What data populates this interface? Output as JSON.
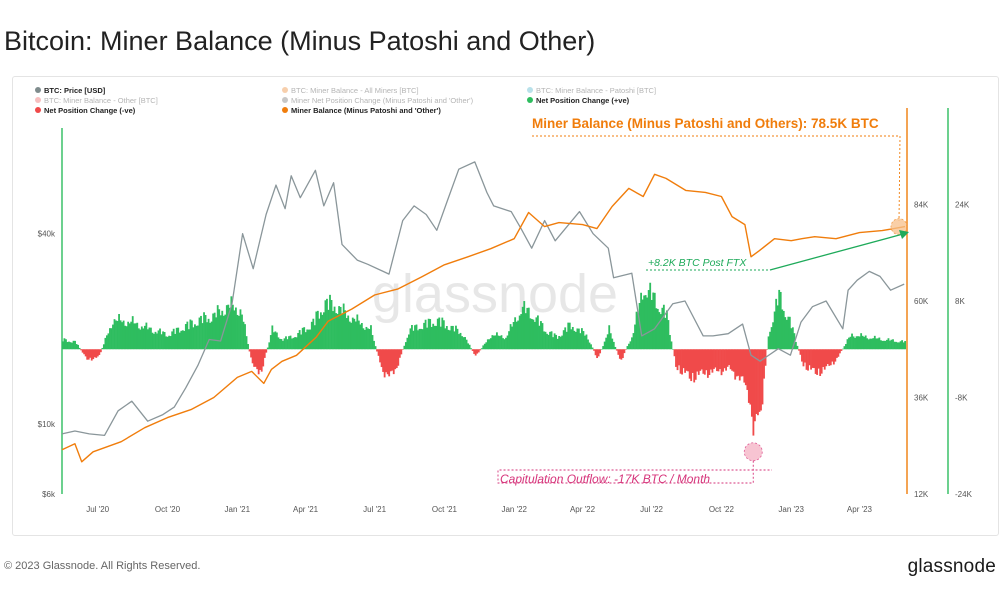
{
  "page": {
    "title": "Bitcoin: Miner Balance (Minus Patoshi and Other)",
    "copyright": "© 2023 Glassnode. All Rights Reserved.",
    "logo": "glassnode",
    "watermark": "glassnode"
  },
  "chart_data": {
    "type": "line",
    "legend": [
      {
        "label": "BTC: Price [USD]",
        "color": "#7f8c8d",
        "active": true
      },
      {
        "label": "BTC: Miner Balance - All Miners [BTC]",
        "color": "#f0a868",
        "active": false
      },
      {
        "label": "BTC: Miner Balance - Patoshi [BTC]",
        "color": "#7ec8d8",
        "active": false
      },
      {
        "label": "BTC: Miner Balance - Other [BTC]",
        "color": "#f08a8a",
        "active": false
      },
      {
        "label": "Miner Net Position Change (Minus Patoshi and 'Other')",
        "color": "#999999",
        "active": false
      },
      {
        "label": "Net Position Change (+ve)",
        "color": "#2ebd5f",
        "active": true
      },
      {
        "label": "Net Position Change (-ve)",
        "color": "#f04a4a",
        "active": true
      },
      {
        "label": "Miner Balance (Minus Patoshi and 'Other')",
        "color": "#f07d0c",
        "active": true
      }
    ],
    "x_ticks": [
      "Jul '20",
      "Oct '20",
      "Jan '21",
      "Apr '21",
      "Jul '21",
      "Oct '21",
      "Jan '22",
      "Apr '22",
      "Jul '22",
      "Oct '22",
      "Jan '23",
      "Apr '23"
    ],
    "x_range": [
      "2020-05-15",
      "2023-05-31"
    ],
    "price_axis": {
      "scale": "log",
      "ticks": [
        "$6k",
        "$10k",
        "$40k"
      ],
      "tick_values": [
        6000,
        10000,
        40000
      ],
      "ylim": [
        6000,
        100000
      ]
    },
    "balance_axis": {
      "ticks": [
        "12K",
        "36K",
        "60K",
        "84K"
      ],
      "tick_values": [
        12000,
        36000,
        60000,
        84000
      ],
      "ylim": [
        12000,
        108000
      ]
    },
    "net_change_axis": {
      "ticks": [
        "-24K",
        "-8K",
        "8K",
        "24K"
      ],
      "tick_values": [
        -24000,
        -8000,
        8000,
        24000
      ],
      "ylim": [
        -24000,
        40000
      ]
    },
    "series": [
      {
        "name": "BTC: Price [USD]",
        "color": "#8a969a",
        "axis": "price",
        "points": [
          [
            "2020-05-15",
            9300
          ],
          [
            "2020-06-01",
            9500
          ],
          [
            "2020-06-20",
            9300
          ],
          [
            "2020-07-10",
            9200
          ],
          [
            "2020-07-28",
            11000
          ],
          [
            "2020-08-15",
            11800
          ],
          [
            "2020-09-05",
            10200
          ],
          [
            "2020-09-25",
            10700
          ],
          [
            "2020-10-10",
            11300
          ],
          [
            "2020-10-25",
            13000
          ],
          [
            "2020-11-10",
            15300
          ],
          [
            "2020-11-25",
            18500
          ],
          [
            "2020-12-10",
            18300
          ],
          [
            "2020-12-25",
            24000
          ],
          [
            "2021-01-08",
            40000
          ],
          [
            "2021-01-22",
            31000
          ],
          [
            "2021-02-08",
            46000
          ],
          [
            "2021-02-21",
            57000
          ],
          [
            "2021-03-05",
            48000
          ],
          [
            "2021-03-13",
            61000
          ],
          [
            "2021-03-25",
            52000
          ],
          [
            "2021-04-14",
            63500
          ],
          [
            "2021-04-25",
            49000
          ],
          [
            "2021-05-08",
            58000
          ],
          [
            "2021-05-19",
            37000
          ],
          [
            "2021-06-08",
            33000
          ],
          [
            "2021-06-22",
            32000
          ],
          [
            "2021-07-20",
            29800
          ],
          [
            "2021-08-07",
            44000
          ],
          [
            "2021-08-22",
            49000
          ],
          [
            "2021-09-07",
            46000
          ],
          [
            "2021-09-21",
            41000
          ],
          [
            "2021-10-05",
            51000
          ],
          [
            "2021-10-20",
            64000
          ],
          [
            "2021-11-10",
            67500
          ],
          [
            "2021-11-26",
            54000
          ],
          [
            "2021-12-05",
            49000
          ],
          [
            "2021-12-28",
            47000
          ],
          [
            "2022-01-10",
            41500
          ],
          [
            "2022-01-24",
            36000
          ],
          [
            "2022-02-10",
            44000
          ],
          [
            "2022-02-24",
            38000
          ],
          [
            "2022-03-28",
            47000
          ],
          [
            "2022-04-15",
            40000
          ],
          [
            "2022-05-05",
            36000
          ],
          [
            "2022-05-12",
            29000
          ],
          [
            "2022-06-05",
            30000
          ],
          [
            "2022-06-18",
            19000
          ],
          [
            "2022-07-05",
            20000
          ],
          [
            "2022-07-29",
            24000
          ],
          [
            "2022-08-14",
            24500
          ],
          [
            "2022-09-07",
            19000
          ],
          [
            "2022-09-20",
            19000
          ],
          [
            "2022-10-10",
            19300
          ],
          [
            "2022-10-29",
            20700
          ],
          [
            "2022-11-09",
            16500
          ],
          [
            "2022-11-21",
            15800
          ],
          [
            "2022-12-15",
            17300
          ],
          [
            "2022-12-31",
            16500
          ],
          [
            "2023-01-14",
            21000
          ],
          [
            "2023-01-29",
            23500
          ],
          [
            "2023-02-16",
            24500
          ],
          [
            "2023-03-10",
            20000
          ],
          [
            "2023-03-17",
            26500
          ],
          [
            "2023-03-29",
            28500
          ],
          [
            "2023-04-14",
            30400
          ],
          [
            "2023-04-28",
            29300
          ],
          [
            "2023-05-12",
            26500
          ],
          [
            "2023-05-30",
            27700
          ]
        ]
      },
      {
        "name": "Miner Balance (Minus Patoshi and 'Other')",
        "color": "#f07d0c",
        "axis": "balance",
        "points": [
          [
            "2020-05-15",
            23000
          ],
          [
            "2020-06-01",
            24500
          ],
          [
            "2020-06-10",
            20000
          ],
          [
            "2020-06-25",
            22500
          ],
          [
            "2020-08-01",
            25000
          ],
          [
            "2020-09-01",
            28500
          ],
          [
            "2020-10-01",
            31000
          ],
          [
            "2020-11-01",
            33000
          ],
          [
            "2020-12-01",
            36000
          ],
          [
            "2021-01-01",
            41000
          ],
          [
            "2021-01-20",
            42500
          ],
          [
            "2021-02-05",
            39500
          ],
          [
            "2021-02-15",
            43000
          ],
          [
            "2021-03-01",
            45000
          ],
          [
            "2021-03-20",
            46500
          ],
          [
            "2021-04-15",
            51000
          ],
          [
            "2021-05-01",
            55000
          ],
          [
            "2021-06-01",
            58000
          ],
          [
            "2021-07-01",
            61500
          ],
          [
            "2021-08-01",
            63000
          ],
          [
            "2021-09-01",
            66000
          ],
          [
            "2021-10-01",
            69000
          ],
          [
            "2021-11-01",
            71000
          ],
          [
            "2021-12-01",
            73000
          ],
          [
            "2022-01-01",
            75500
          ],
          [
            "2022-01-20",
            82000
          ],
          [
            "2022-02-10",
            78500
          ],
          [
            "2022-03-01",
            79500
          ],
          [
            "2022-04-01",
            79000
          ],
          [
            "2022-04-20",
            78000
          ],
          [
            "2022-05-10",
            83500
          ],
          [
            "2022-06-01",
            88000
          ],
          [
            "2022-06-20",
            86000
          ],
          [
            "2022-07-05",
            91500
          ],
          [
            "2022-07-20",
            90500
          ],
          [
            "2022-08-15",
            87500
          ],
          [
            "2022-09-10",
            87000
          ],
          [
            "2022-10-01",
            86000
          ],
          [
            "2022-10-15",
            81000
          ],
          [
            "2022-11-01",
            79000
          ],
          [
            "2022-11-09",
            71000
          ],
          [
            "2022-11-20",
            72500
          ],
          [
            "2022-12-10",
            75500
          ],
          [
            "2023-01-01",
            75000
          ],
          [
            "2023-01-15",
            75500
          ],
          [
            "2023-02-01",
            76000
          ],
          [
            "2023-03-01",
            75500
          ],
          [
            "2023-04-01",
            77000
          ],
          [
            "2023-05-01",
            77500
          ],
          [
            "2023-05-31",
            78500
          ]
        ]
      },
      {
        "name": "Net Position Change",
        "color_pos": "#2ebd5f",
        "color_neg": "#f04a4a",
        "axis": "net_change",
        "points": [
          [
            "2020-05-15",
            2000
          ],
          [
            "2020-06-01",
            1500
          ],
          [
            "2020-06-15",
            -2000
          ],
          [
            "2020-07-01",
            -1800
          ],
          [
            "2020-07-20",
            6000
          ],
          [
            "2020-08-15",
            5500
          ],
          [
            "2020-09-10",
            4000
          ],
          [
            "2020-10-01",
            3000
          ],
          [
            "2020-10-20",
            4500
          ],
          [
            "2020-11-10",
            6000
          ],
          [
            "2020-12-01",
            7000
          ],
          [
            "2020-12-20",
            9000
          ],
          [
            "2021-01-05",
            8000
          ],
          [
            "2021-01-20",
            -3500
          ],
          [
            "2021-02-01",
            -4500
          ],
          [
            "2021-02-15",
            4000
          ],
          [
            "2021-03-01",
            2000
          ],
          [
            "2021-03-20",
            3000
          ],
          [
            "2021-04-10",
            5500
          ],
          [
            "2021-04-25",
            9500
          ],
          [
            "2021-05-10",
            9000
          ],
          [
            "2021-05-25",
            7000
          ],
          [
            "2021-06-10",
            5500
          ],
          [
            "2021-06-25",
            4000
          ],
          [
            "2021-07-10",
            -4500
          ],
          [
            "2021-07-25",
            -5500
          ],
          [
            "2021-08-15",
            4000
          ],
          [
            "2021-09-01",
            5000
          ],
          [
            "2021-09-20",
            6000
          ],
          [
            "2021-10-10",
            4500
          ],
          [
            "2021-10-25",
            3000
          ],
          [
            "2021-11-10",
            -1500
          ],
          [
            "2021-12-01",
            3000
          ],
          [
            "2021-12-20",
            2500
          ],
          [
            "2022-01-10",
            8500
          ],
          [
            "2022-01-25",
            7000
          ],
          [
            "2022-02-10",
            4000
          ],
          [
            "2022-02-25",
            2500
          ],
          [
            "2022-03-15",
            5000
          ],
          [
            "2022-04-05",
            3000
          ],
          [
            "2022-04-20",
            -2000
          ],
          [
            "2022-05-05",
            4000
          ],
          [
            "2022-05-20",
            -2500
          ],
          [
            "2022-06-05",
            3000
          ],
          [
            "2022-06-20",
            13000
          ],
          [
            "2022-07-05",
            10000
          ],
          [
            "2022-07-20",
            7000
          ],
          [
            "2022-08-01",
            -3500
          ],
          [
            "2022-08-20",
            -6000
          ],
          [
            "2022-09-05",
            -5000
          ],
          [
            "2022-09-25",
            -4500
          ],
          [
            "2022-10-10",
            -4000
          ],
          [
            "2022-10-25",
            -6000
          ],
          [
            "2022-11-05",
            -9000
          ],
          [
            "2022-11-12",
            -17000
          ],
          [
            "2022-11-20",
            -14000
          ],
          [
            "2022-12-01",
            3000
          ],
          [
            "2022-12-15",
            11000
          ],
          [
            "2022-12-31",
            5000
          ],
          [
            "2023-01-15",
            -3000
          ],
          [
            "2023-02-01",
            -5000
          ],
          [
            "2023-02-15",
            -4000
          ],
          [
            "2023-03-01",
            -2000
          ],
          [
            "2023-03-20",
            3000
          ],
          [
            "2023-04-10",
            2500
          ],
          [
            "2023-05-01",
            2000
          ],
          [
            "2023-05-31",
            1500
          ]
        ]
      }
    ],
    "annotations": [
      {
        "text": "Miner Balance (Minus Patoshi and Others): 78.5K BTC",
        "color": "#f07d0c"
      },
      {
        "text": "+8.2K BTC Post FTX",
        "color": "#1eaa5a"
      },
      {
        "text": "Capitulation Outflow: -17K BTC / Month",
        "color": "#d6337a"
      }
    ]
  }
}
